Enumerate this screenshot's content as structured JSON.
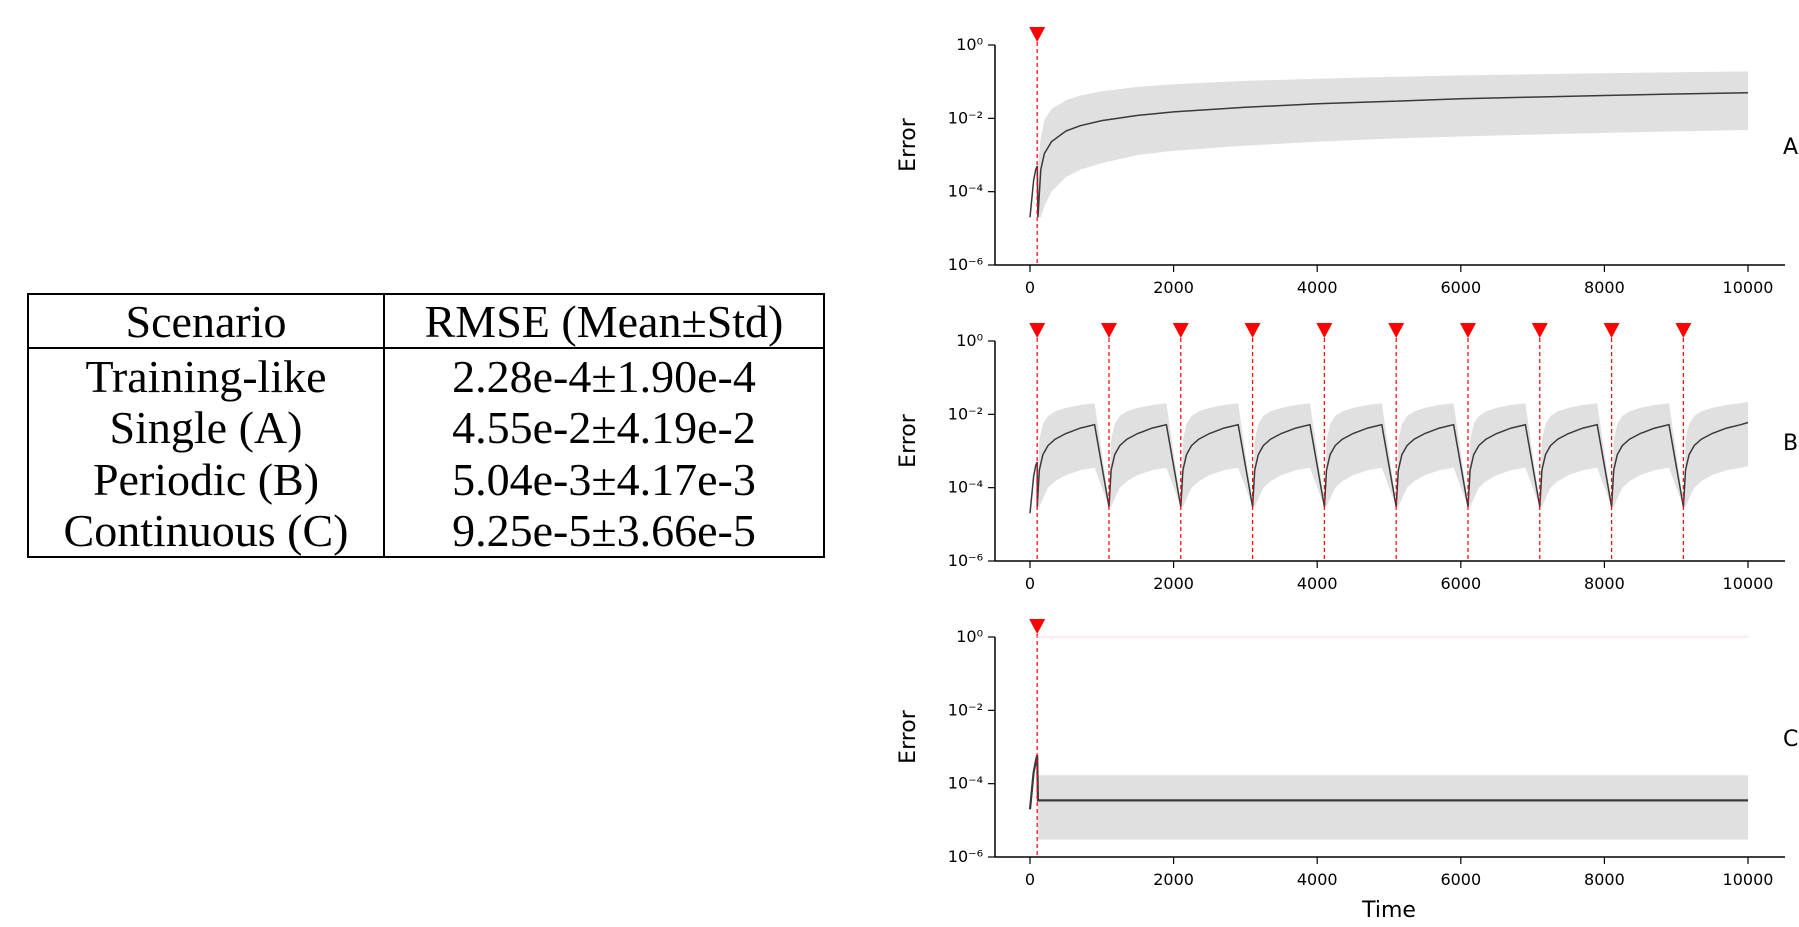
{
  "table": {
    "headers": [
      "Scenario",
      "RMSE (Mean±Std)"
    ],
    "rows": [
      [
        "Training-like",
        "2.28e-4±1.90e-4"
      ],
      [
        "Single (A)",
        "4.55e-2±4.19e-2"
      ],
      [
        "Periodic (B)",
        "5.04e-3±4.17e-3"
      ],
      [
        "Continuous (C)",
        "9.25e-5±3.66e-5"
      ]
    ]
  },
  "chart_data": [
    {
      "type": "line",
      "panel_label": "A",
      "xlabel": "",
      "ylabel": "Error",
      "yscale": "log",
      "xlim": [
        0,
        10000
      ],
      "ylim": [
        1e-06,
        1
      ],
      "xticks": [
        0,
        2000,
        4000,
        6000,
        8000,
        10000
      ],
      "yticks": [
        1e-06,
        0.0001,
        0.01,
        1
      ],
      "ytick_labels": [
        "10⁻⁶",
        "10⁻⁴",
        "10⁻²",
        "10⁰"
      ],
      "event_markers": [
        100
      ],
      "series": [
        {
          "x": [
            0,
            50,
            80,
            100,
            110,
            150,
            200,
            300,
            500,
            700,
            1000,
            1500,
            2000,
            3000,
            4000,
            5000,
            6000,
            7000,
            8000,
            9000,
            10000
          ],
          "mean": [
            2e-05,
            0.0002,
            0.0004,
            0.0005,
            2e-05,
            0.0004,
            0.0011,
            0.0023,
            0.0045,
            0.0063,
            0.0087,
            0.012,
            0.015,
            0.02,
            0.025,
            0.029,
            0.034,
            0.038,
            0.042,
            0.046,
            0.05
          ],
          "lower": [
            2e-05,
            0.0002,
            0.0004,
            0.0005,
            2e-05,
            2e-05,
            4e-05,
            0.0001,
            0.00025,
            0.0004,
            0.0006,
            0.001,
            0.0013,
            0.0018,
            0.0023,
            0.0028,
            0.0032,
            0.0036,
            0.004,
            0.0044,
            0.0048
          ],
          "upper": [
            2e-05,
            0.0002,
            0.0004,
            0.0005,
            0.0005,
            0.003,
            0.009,
            0.018,
            0.031,
            0.042,
            0.055,
            0.072,
            0.085,
            0.105,
            0.12,
            0.135,
            0.148,
            0.16,
            0.17,
            0.18,
            0.19
          ]
        }
      ]
    },
    {
      "type": "line",
      "panel_label": "B",
      "xlabel": "",
      "ylabel": "Error",
      "yscale": "log",
      "xlim": [
        0,
        10000
      ],
      "ylim": [
        1e-06,
        1
      ],
      "xticks": [
        0,
        2000,
        4000,
        6000,
        8000,
        10000
      ],
      "yticks": [
        1e-06,
        0.0001,
        0.01,
        1
      ],
      "ytick_labels": [
        "10⁻⁶",
        "10⁻⁴",
        "10⁻²",
        "10⁰"
      ],
      "event_markers": [
        100,
        1100,
        2100,
        3100,
        4100,
        5100,
        6100,
        7100,
        8100,
        9100
      ],
      "period": 1000,
      "cycle_offsets": [
        0,
        30,
        80,
        150,
        250,
        400,
        600,
        800,
        1000
      ],
      "series": [
        {
          "mean": [
            3e-05,
            0.0003,
            0.0008,
            0.0014,
            0.0021,
            0.003,
            0.0042,
            0.0052,
            0.006
          ],
          "lower": [
            3e-05,
            3e-05,
            5e-05,
            0.0001,
            0.00015,
            0.00022,
            0.0003,
            0.00035,
            0.00039
          ],
          "upper": [
            4e-05,
            0.002,
            0.0055,
            0.009,
            0.012,
            0.015,
            0.018,
            0.02,
            0.022
          ]
        }
      ]
    },
    {
      "type": "line",
      "panel_label": "C",
      "xlabel": "Time",
      "ylabel": "Error",
      "yscale": "log",
      "xlim": [
        0,
        10000
      ],
      "ylim": [
        1e-06,
        1
      ],
      "xticks": [
        0,
        2000,
        4000,
        6000,
        8000,
        10000
      ],
      "yticks": [
        1e-06,
        0.0001,
        0.01,
        1
      ],
      "ytick_labels": [
        "10⁻⁶",
        "10⁻⁴",
        "10⁻²",
        "10⁰"
      ],
      "event_markers": [
        100
      ],
      "series": [
        {
          "x": [
            0,
            50,
            80,
            100,
            110,
            10000
          ],
          "mean": [
            2e-05,
            0.0002,
            0.0004,
            0.0006,
            3.5e-05,
            3.5e-05
          ],
          "lower": [
            2e-05,
            0.0002,
            0.0004,
            0.0006,
            3e-06,
            3e-06
          ],
          "upper": [
            2e-05,
            0.0002,
            0.0004,
            0.0006,
            0.00017,
            0.00017
          ]
        }
      ]
    }
  ],
  "colors": {
    "mean_line": "#3a3a3a",
    "band": "#e0e0e0",
    "marker": "#ff0000"
  }
}
